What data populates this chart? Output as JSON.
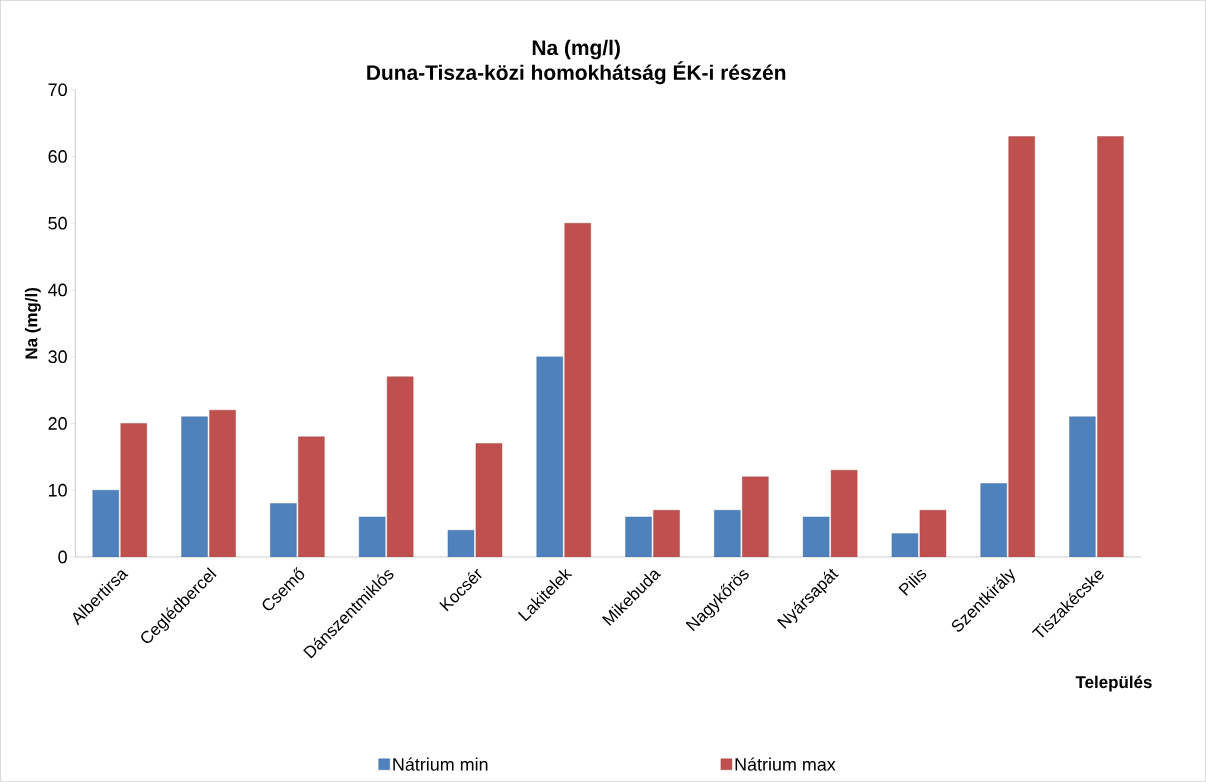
{
  "chart_data": {
    "type": "bar",
    "title": "Na (mg/l)",
    "subtitle": "Duna-Tisza-közi homokhátság ÉK-i részén",
    "xlabel": "Település",
    "ylabel": "Na (mg/l)",
    "categories": [
      "Albertirsa",
      "Ceglédbercel",
      "Csemő",
      "Dánszentmiklós",
      "Kocsér",
      "Lakitelek",
      "Mikebuda",
      "Nagykőrös",
      "Nyársapát",
      "Pilis",
      "Szentkirály",
      "Tiszakécske"
    ],
    "series": [
      {
        "name": "Nátrium min",
        "color": "#4f81bd",
        "values": [
          10,
          21,
          8,
          6,
          4,
          30,
          6,
          7,
          6,
          3.5,
          11,
          21
        ]
      },
      {
        "name": "Nátrium max",
        "color": "#c0504d",
        "values": [
          20,
          22,
          18,
          27,
          17,
          50,
          7,
          12,
          13,
          7,
          63,
          63
        ]
      }
    ],
    "ylim": [
      0,
      70
    ],
    "yticks": [
      0,
      10,
      20,
      30,
      40,
      50,
      60,
      70
    ],
    "legend": "bottom"
  }
}
